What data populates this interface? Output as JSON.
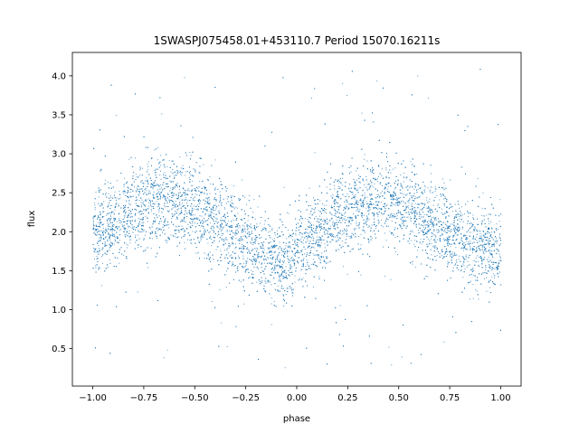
{
  "chart_data": {
    "type": "scatter",
    "title": "1SWASPJ075458.01+453110.7 Period 15070.16211s",
    "xlabel": "phase",
    "ylabel": "flux",
    "xlim": [
      -1.1,
      1.1
    ],
    "ylim": [
      0.02,
      4.3
    ],
    "x_ticks": [
      -1.0,
      -0.75,
      -0.5,
      -0.25,
      0.0,
      0.25,
      0.5,
      0.75,
      1.0
    ],
    "x_tick_labels": [
      "−1.00",
      "−0.75",
      "−0.50",
      "−0.25",
      "0.00",
      "0.25",
      "0.50",
      "0.75",
      "1.00"
    ],
    "y_ticks": [
      0.5,
      1.0,
      1.5,
      2.0,
      2.5,
      3.0,
      3.5,
      4.0
    ],
    "y_tick_labels": [
      "0.5",
      "1.0",
      "1.5",
      "2.0",
      "2.5",
      "3.0",
      "3.5",
      "4.0"
    ],
    "grid": false,
    "legend": "none",
    "marker_color": "#1f77b4",
    "series": [
      {
        "x": [
          -1.0,
          -0.9,
          -0.8,
          -0.7,
          -0.6,
          -0.5,
          -0.4,
          -0.3,
          -0.2,
          -0.1,
          0.0,
          0.1,
          0.2,
          0.3,
          0.4,
          0.5,
          0.6,
          0.7,
          0.8,
          0.9,
          1.0
        ],
        "y_center": [
          1.95,
          2.1,
          2.3,
          2.42,
          2.4,
          2.3,
          2.15,
          1.95,
          1.75,
          1.62,
          1.7,
          1.95,
          2.2,
          2.38,
          2.42,
          2.35,
          2.2,
          2.05,
          1.9,
          1.8,
          1.75
        ],
        "y_low": [
          1.4,
          1.55,
          1.75,
          1.9,
          1.9,
          1.75,
          1.55,
          1.35,
          1.2,
          1.15,
          1.25,
          1.45,
          1.7,
          1.9,
          1.9,
          1.8,
          1.65,
          1.5,
          1.4,
          1.3,
          1.3
        ],
        "y_high": [
          2.55,
          2.7,
          2.95,
          3.1,
          3.05,
          2.9,
          2.75,
          2.55,
          2.35,
          2.15,
          2.25,
          2.5,
          2.8,
          3.0,
          3.05,
          2.95,
          2.8,
          2.6,
          2.45,
          2.35,
          2.3
        ]
      }
    ]
  }
}
